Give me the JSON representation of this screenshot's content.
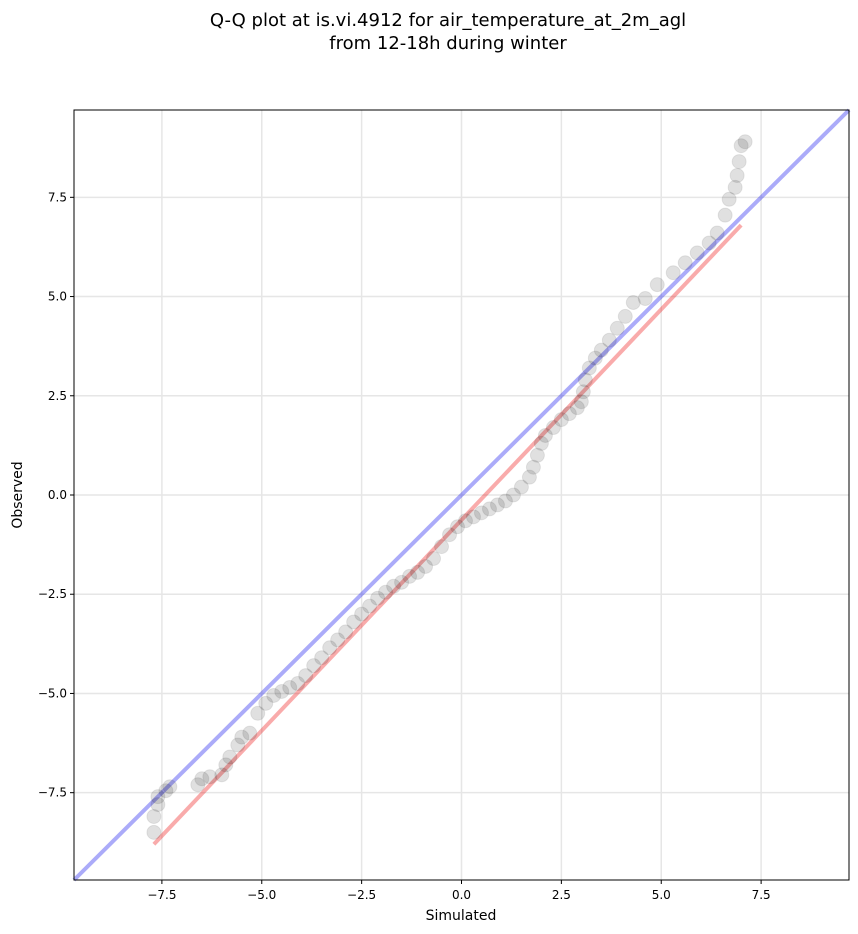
{
  "chart_data": {
    "type": "scatter",
    "title": "Q-Q plot at is.vi.4912 for air_temperature_at_2m_agl",
    "subtitle": "from 12-18h during winter",
    "xlabel": "Simulated",
    "ylabel": "Observed",
    "xlim": [
      -9.7,
      9.7
    ],
    "ylim": [
      -9.7,
      9.7
    ],
    "xticks": [
      -7.5,
      -5.0,
      -2.5,
      0.0,
      2.5,
      5.0,
      7.5
    ],
    "yticks": [
      -7.5,
      -5.0,
      -2.5,
      0.0,
      2.5,
      5.0,
      7.5
    ],
    "xtick_labels": [
      "−7.5",
      "−5.0",
      "−2.5",
      "0.0",
      "2.5",
      "5.0",
      "7.5"
    ],
    "ytick_labels": [
      "−7.5",
      "−5.0",
      "−2.5",
      "0.0",
      "2.5",
      "5.0",
      "7.5"
    ],
    "grid": true,
    "reference_line": {
      "x": [
        -9.7,
        9.7
      ],
      "y": [
        -9.7,
        9.7
      ],
      "color": "#0000ee"
    },
    "fit_line": {
      "x": [
        -7.7,
        7.0
      ],
      "y": [
        -8.8,
        6.8
      ],
      "color": "#ee0000"
    },
    "point_color": "#000000",
    "points": [
      [
        -7.7,
        -8.5
      ],
      [
        -7.7,
        -8.1
      ],
      [
        -7.6,
        -7.8
      ],
      [
        -7.6,
        -7.6
      ],
      [
        -7.4,
        -7.45
      ],
      [
        -7.3,
        -7.35
      ],
      [
        -6.6,
        -7.3
      ],
      [
        -6.5,
        -7.15
      ],
      [
        -6.3,
        -7.1
      ],
      [
        -6.0,
        -7.05
      ],
      [
        -5.9,
        -6.8
      ],
      [
        -5.8,
        -6.6
      ],
      [
        -5.6,
        -6.3
      ],
      [
        -5.5,
        -6.1
      ],
      [
        -5.3,
        -6.0
      ],
      [
        -5.1,
        -5.5
      ],
      [
        -4.9,
        -5.25
      ],
      [
        -4.7,
        -5.05
      ],
      [
        -4.5,
        -4.95
      ],
      [
        -4.3,
        -4.85
      ],
      [
        -4.1,
        -4.75
      ],
      [
        -3.9,
        -4.55
      ],
      [
        -3.7,
        -4.3
      ],
      [
        -3.5,
        -4.1
      ],
      [
        -3.3,
        -3.85
      ],
      [
        -3.1,
        -3.65
      ],
      [
        -2.9,
        -3.45
      ],
      [
        -2.7,
        -3.2
      ],
      [
        -2.5,
        -3.0
      ],
      [
        -2.3,
        -2.8
      ],
      [
        -2.1,
        -2.6
      ],
      [
        -1.9,
        -2.45
      ],
      [
        -1.7,
        -2.3
      ],
      [
        -1.5,
        -2.2
      ],
      [
        -1.3,
        -2.05
      ],
      [
        -1.1,
        -1.95
      ],
      [
        -0.9,
        -1.8
      ],
      [
        -0.7,
        -1.6
      ],
      [
        -0.5,
        -1.3
      ],
      [
        -0.3,
        -1.0
      ],
      [
        -0.1,
        -0.8
      ],
      [
        0.1,
        -0.65
      ],
      [
        0.3,
        -0.55
      ],
      [
        0.5,
        -0.45
      ],
      [
        0.7,
        -0.35
      ],
      [
        0.9,
        -0.25
      ],
      [
        1.1,
        -0.15
      ],
      [
        1.3,
        0.0
      ],
      [
        1.5,
        0.2
      ],
      [
        1.7,
        0.45
      ],
      [
        1.8,
        0.7
      ],
      [
        1.9,
        1.0
      ],
      [
        2.0,
        1.3
      ],
      [
        2.1,
        1.5
      ],
      [
        2.3,
        1.7
      ],
      [
        2.5,
        1.9
      ],
      [
        2.7,
        2.05
      ],
      [
        2.9,
        2.2
      ],
      [
        3.0,
        2.35
      ],
      [
        3.05,
        2.6
      ],
      [
        3.1,
        2.9
      ],
      [
        3.2,
        3.2
      ],
      [
        3.35,
        3.45
      ],
      [
        3.5,
        3.65
      ],
      [
        3.7,
        3.9
      ],
      [
        3.9,
        4.2
      ],
      [
        4.1,
        4.5
      ],
      [
        4.3,
        4.85
      ],
      [
        4.6,
        4.95
      ],
      [
        4.9,
        5.3
      ],
      [
        5.3,
        5.6
      ],
      [
        5.6,
        5.85
      ],
      [
        5.9,
        6.1
      ],
      [
        6.2,
        6.35
      ],
      [
        6.4,
        6.6
      ],
      [
        6.6,
        7.05
      ],
      [
        6.7,
        7.45
      ],
      [
        6.85,
        7.75
      ],
      [
        6.9,
        8.05
      ],
      [
        6.95,
        8.4
      ],
      [
        7.0,
        8.8
      ],
      [
        7.1,
        8.9
      ]
    ]
  }
}
